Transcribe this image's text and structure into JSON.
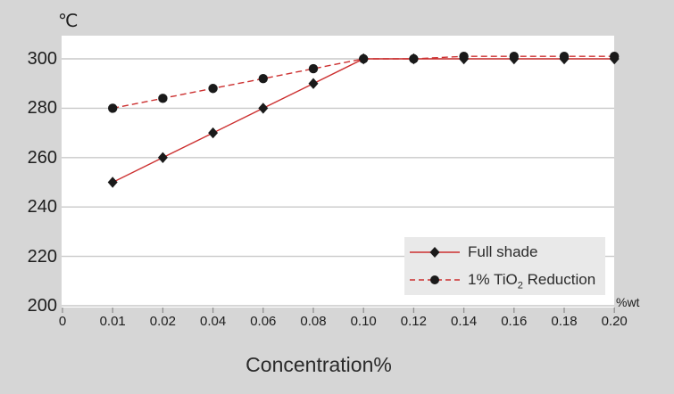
{
  "colors": {
    "page_bg": "#d6d6d6",
    "plot_bg": "#ffffff",
    "gridline": "#c9c9c9",
    "tick": "#8f8f8f",
    "text": "#1d1d1d",
    "series_line_red": "#cc2f2f",
    "marker_black": "#1a1a1a",
    "legend_bg": "#e9e9e9"
  },
  "chart_data": {
    "type": "line",
    "title": "",
    "xlabel": "Concentration%",
    "x_axis_unit": "%wt",
    "y_axis_unit": "℃",
    "categories": [
      "0",
      "0.01",
      "0.02",
      "0.04",
      "0.06",
      "0.08",
      "0.10",
      "0.12",
      "0.14",
      "0.16",
      "0.18",
      "0.20"
    ],
    "yticks": [
      300,
      280,
      260,
      240,
      220,
      200
    ],
    "ylim": [
      200,
      310
    ],
    "grid": true,
    "legend_position": "inside-bottom-right",
    "series": [
      {
        "name": "Full shade",
        "label_parts": [
          {
            "text": "Full shade"
          }
        ],
        "line_style": "solid",
        "marker": "diamond",
        "line_color": "#cc2f2f",
        "marker_color": "#1a1a1a",
        "points": [
          [
            "0.01",
            250
          ],
          [
            "0.02",
            260
          ],
          [
            "0.04",
            270
          ],
          [
            "0.06",
            280
          ],
          [
            "0.08",
            290
          ],
          [
            "0.10",
            300
          ],
          [
            "0.12",
            300
          ],
          [
            "0.14",
            300
          ],
          [
            "0.16",
            300
          ],
          [
            "0.18",
            300
          ],
          [
            "0.20",
            300
          ]
        ]
      },
      {
        "name": "1% TiO2 Reduction",
        "label_parts": [
          {
            "text": "1% TiO"
          },
          {
            "text": "2",
            "sub": true
          },
          {
            "text": " Reduction"
          }
        ],
        "line_style": "dashed",
        "marker": "circle",
        "line_color": "#cc2f2f",
        "marker_color": "#1a1a1a",
        "points": [
          [
            "0.01",
            280
          ],
          [
            "0.02",
            284
          ],
          [
            "0.04",
            288
          ],
          [
            "0.06",
            292
          ],
          [
            "0.08",
            296
          ],
          [
            "0.10",
            300
          ],
          [
            "0.12",
            300
          ],
          [
            "0.14",
            301
          ],
          [
            "0.16",
            301
          ],
          [
            "0.18",
            301
          ],
          [
            "0.20",
            301
          ]
        ]
      }
    ]
  }
}
